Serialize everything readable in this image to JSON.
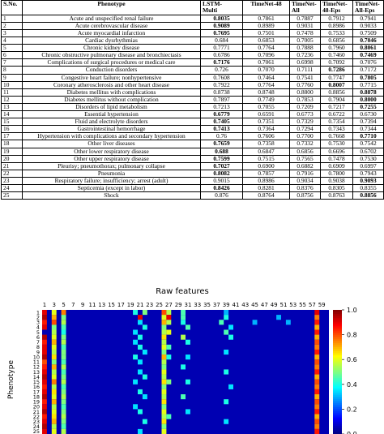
{
  "table": {
    "headers": [
      "S.No.",
      "Phenotype",
      "LSTM-\nMulti",
      "TimeNet-48",
      "TimeNet-\nAll",
      "TimeNet-\n48-Eps",
      "TimeNet-\nAll-Eps"
    ],
    "rows": [
      [
        "1",
        "Acute and unspecified renal failure",
        "0.8035",
        "0.7861",
        "0.7887",
        "0.7912",
        "0.7941"
      ],
      [
        "2",
        "Acute cerebrovascular disease",
        "0.9089",
        "0.8989",
        "0.9031",
        "0.8986",
        "0.9033"
      ],
      [
        "3",
        "Acute myocardial infarction",
        "0.7695",
        "0.7501",
        "0.7478",
        "0.7533",
        "0.7509"
      ],
      [
        "4",
        "Cardiac dysrhythmias",
        "0.684",
        "0.6853",
        "0.7005",
        "0.6856",
        "0.7046"
      ],
      [
        "5",
        "Chronic kidney disease",
        "0.7771",
        "0.7764",
        "0.7888",
        "0.7960",
        "0.8061"
      ],
      [
        "6",
        "Chronic obstructive pulmonary disease and bronchiectasis",
        "0.6786",
        "0.7096",
        "0.7236",
        "0.7460",
        "0.7469"
      ],
      [
        "7",
        "Complications of surgical procedures or medical care",
        "0.7176",
        "0.7061",
        "0.6998",
        "0.7092",
        "0.7076"
      ],
      [
        "8",
        "Conduction disorders",
        "0.726",
        "0.7070",
        "0.7111",
        "0.7286",
        "0.7172"
      ],
      [
        "9",
        "Congestive heart failure; nonhypertensive",
        "0.7608",
        "0.7464",
        "0.7541",
        "0.7747",
        "0.7805"
      ],
      [
        "10",
        "Coronary atherosclerosis and other heart disease",
        "0.7922",
        "0.7764",
        "0.7760",
        "0.8007",
        "0.7715"
      ],
      [
        "11",
        "Diabetes mellitus with complications",
        "0.8738",
        "0.8748",
        "0.8800",
        "0.8856",
        "0.8878"
      ],
      [
        "12",
        "Diabetes mellitus without complication",
        "0.7897",
        "0.7749",
        "0.7853",
        "0.7904",
        "0.8000"
      ],
      [
        "13",
        "Disorders of lipid metabolism",
        "0.7213",
        "0.7055",
        "0.7209",
        "0.7217",
        "0.7255"
      ],
      [
        "14",
        "Essential hypertension",
        "0.6779",
        "0.6591",
        "0.6773",
        "0.6722",
        "0.6730"
      ],
      [
        "15",
        "Fluid and electrolyte disorders",
        "0.7405",
        "0.7351",
        "0.7329",
        "0.7354",
        "0.7394"
      ],
      [
        "16",
        "Gastrointestinal hemorrhage",
        "0.7413",
        "0.7364",
        "0.7294",
        "0.7343",
        "0.7344"
      ],
      [
        "17",
        "Hypertension with complications and secondary hypertension",
        "0.76",
        "0.7606",
        "0.7700",
        "0.7668",
        "0.7710"
      ],
      [
        "18",
        "Other liver diseases",
        "0.7659",
        "0.7358",
        "0.7332",
        "0.7530",
        "0.7542"
      ],
      [
        "19",
        "Other lower respiratory disease",
        "0.688",
        "0.6847",
        "0.6856",
        "0.6696",
        "0.6702"
      ],
      [
        "20",
        "Other upper respiratory disease",
        "0.7599",
        "0.7515",
        "0.7565",
        "0.7478",
        "0.7530"
      ],
      [
        "21",
        "Pleurisy; pneumothorax; pulmonary collapse",
        "0.7027",
        "0.6900",
        "0.6882",
        "0.6909",
        "0.6997"
      ],
      [
        "22",
        "Pneumonia",
        "0.8082",
        "0.7857",
        "0.7916",
        "0.7800",
        "0.7943"
      ],
      [
        "23",
        "Respiratory failure; insufficiency; arrest (adult)",
        "0.9015",
        "0.8986",
        "0.9034",
        "0.9038",
        "0.9093"
      ],
      [
        "24",
        "Septicemia (except in labor)",
        "0.8426",
        "0.8281",
        "0.8376",
        "0.8305",
        "0.8355"
      ],
      [
        "25",
        "Shock",
        "0.876",
        "0.8764",
        "0.8756",
        "0.8763",
        "0.8856"
      ]
    ],
    "bold_cells": [
      [
        1,
        2
      ],
      [
        2,
        2
      ],
      [
        3,
        2
      ],
      [
        4,
        6
      ],
      [
        5,
        6
      ],
      [
        6,
        6
      ],
      [
        7,
        2
      ],
      [
        8,
        5
      ],
      [
        9,
        6
      ],
      [
        10,
        5
      ],
      [
        11,
        6
      ],
      [
        12,
        6
      ],
      [
        13,
        6
      ],
      [
        14,
        2
      ],
      [
        15,
        2
      ],
      [
        16,
        2
      ],
      [
        17,
        6
      ],
      [
        18,
        2
      ],
      [
        19,
        2
      ],
      [
        20,
        2
      ],
      [
        21,
        2
      ],
      [
        22,
        2
      ],
      [
        23,
        6
      ],
      [
        24,
        2
      ],
      [
        25,
        6
      ]
    ]
  },
  "chart_data": {
    "type": "heatmap",
    "title": "Raw features",
    "xlabel": "",
    "ylabel": "Phenotype",
    "x_tick_labels": [
      "1",
      "3",
      "5",
      "7",
      "9",
      "11",
      "13",
      "15",
      "17",
      "19",
      "21",
      "23",
      "25",
      "27",
      "29",
      "31",
      "33",
      "35",
      "37",
      "39",
      "41",
      "43",
      "45",
      "47",
      "49",
      "51",
      "53",
      "55",
      "57",
      "59"
    ],
    "x_tick_values": [
      1,
      3,
      5,
      7,
      9,
      11,
      13,
      15,
      17,
      19,
      21,
      23,
      25,
      27,
      29,
      31,
      33,
      35,
      37,
      39,
      41,
      43,
      45,
      47,
      49,
      51,
      53,
      55,
      57,
      59
    ],
    "y_tick_labels": [
      "1",
      "2",
      "3",
      "4",
      "5",
      "6",
      "7",
      "8",
      "9",
      "10",
      "11",
      "12",
      "13",
      "14",
      "15",
      "16",
      "17",
      "18",
      "19",
      "20",
      "21",
      "22",
      "23",
      "24",
      "25"
    ],
    "n_rows": 25,
    "n_cols": 60,
    "colorbar": {
      "min": 0.0,
      "max": 1.0,
      "ticks": [
        "0.0",
        "0.2",
        "0.4",
        "0.6",
        "0.8",
        "1.0"
      ]
    },
    "colormap": [
      "#00007f",
      "#0000ff",
      "#007fff",
      "#00ffff",
      "#7fff7f",
      "#ffff00",
      "#ff7f00",
      "#ff0000",
      "#7f0000"
    ],
    "background_value": 0.05,
    "high_cells": [
      [
        1,
        1,
        0.9
      ],
      [
        1,
        3,
        0.6
      ],
      [
        1,
        5,
        0.75
      ],
      [
        1,
        20,
        0.4
      ],
      [
        1,
        22,
        0.5
      ],
      [
        1,
        26,
        0.8
      ],
      [
        1,
        27,
        0.55
      ],
      [
        1,
        30,
        0.45
      ],
      [
        1,
        39,
        0.3
      ],
      [
        1,
        58,
        0.9
      ],
      [
        2,
        1,
        0.95
      ],
      [
        2,
        3,
        0.7
      ],
      [
        2,
        5,
        0.5
      ],
      [
        2,
        21,
        0.9
      ],
      [
        2,
        26,
        0.6
      ],
      [
        2,
        27,
        0.9
      ],
      [
        2,
        30,
        0.45
      ],
      [
        2,
        39,
        0.4
      ],
      [
        2,
        50,
        0.3
      ],
      [
        2,
        58,
        0.75
      ],
      [
        3,
        1,
        0.85
      ],
      [
        3,
        3,
        0.8
      ],
      [
        3,
        5,
        0.55
      ],
      [
        3,
        21,
        0.35
      ],
      [
        3,
        26,
        0.7
      ],
      [
        3,
        27,
        0.55
      ],
      [
        3,
        30,
        0.4
      ],
      [
        3,
        38,
        0.45
      ],
      [
        3,
        45,
        0.3
      ],
      [
        3,
        52,
        0.3
      ],
      [
        3,
        58,
        0.85
      ],
      [
        4,
        1,
        0.9
      ],
      [
        4,
        3,
        0.5
      ],
      [
        4,
        5,
        0.45
      ],
      [
        4,
        22,
        0.4
      ],
      [
        4,
        26,
        0.5
      ],
      [
        4,
        31,
        0.45
      ],
      [
        4,
        40,
        0.35
      ],
      [
        4,
        58,
        0.7
      ],
      [
        5,
        3,
        0.55
      ],
      [
        5,
        5,
        0.4
      ],
      [
        5,
        20,
        0.35
      ],
      [
        5,
        26,
        0.55
      ],
      [
        5,
        27,
        0.6
      ],
      [
        5,
        39,
        0.45
      ],
      [
        5,
        58,
        0.85
      ],
      [
        6,
        1,
        0.95
      ],
      [
        6,
        3,
        0.6
      ],
      [
        6,
        5,
        0.5
      ],
      [
        6,
        21,
        0.4
      ],
      [
        6,
        26,
        0.65
      ],
      [
        6,
        30,
        0.55
      ],
      [
        6,
        40,
        0.4
      ],
      [
        6,
        58,
        0.7
      ],
      [
        7,
        1,
        0.85
      ],
      [
        7,
        3,
        0.7
      ],
      [
        7,
        5,
        0.55
      ],
      [
        7,
        20,
        0.35
      ],
      [
        7,
        26,
        0.55
      ],
      [
        7,
        31,
        0.4
      ],
      [
        7,
        58,
        0.8
      ],
      [
        8,
        1,
        0.9
      ],
      [
        8,
        3,
        0.6
      ],
      [
        8,
        5,
        0.45
      ],
      [
        8,
        21,
        0.4
      ],
      [
        8,
        26,
        0.6
      ],
      [
        8,
        27,
        0.45
      ],
      [
        8,
        58,
        0.75
      ],
      [
        9,
        1,
        0.9
      ],
      [
        9,
        3,
        0.55
      ],
      [
        9,
        5,
        0.5
      ],
      [
        9,
        22,
        0.35
      ],
      [
        9,
        26,
        0.5
      ],
      [
        9,
        39,
        0.35
      ],
      [
        9,
        58,
        0.85
      ],
      [
        10,
        1,
        0.95
      ],
      [
        10,
        3,
        0.65
      ],
      [
        10,
        5,
        0.5
      ],
      [
        10,
        20,
        0.4
      ],
      [
        10,
        26,
        0.7
      ],
      [
        10,
        27,
        0.4
      ],
      [
        10,
        31,
        0.35
      ],
      [
        10,
        58,
        0.7
      ],
      [
        11,
        1,
        0.8
      ],
      [
        11,
        3,
        0.5
      ],
      [
        11,
        5,
        0.45
      ],
      [
        11,
        21,
        0.35
      ],
      [
        11,
        26,
        0.55
      ],
      [
        11,
        58,
        0.8
      ],
      [
        12,
        1,
        0.85
      ],
      [
        12,
        3,
        0.7
      ],
      [
        12,
        5,
        0.55
      ],
      [
        12,
        26,
        0.5
      ],
      [
        12,
        30,
        0.4
      ],
      [
        12,
        58,
        0.75
      ],
      [
        13,
        1,
        0.9
      ],
      [
        13,
        3,
        0.55
      ],
      [
        13,
        5,
        0.45
      ],
      [
        13,
        21,
        0.35
      ],
      [
        13,
        26,
        0.6
      ],
      [
        13,
        39,
        0.4
      ],
      [
        13,
        58,
        0.85
      ],
      [
        14,
        1,
        0.95
      ],
      [
        14,
        3,
        0.6
      ],
      [
        14,
        5,
        0.5
      ],
      [
        14,
        22,
        0.4
      ],
      [
        14,
        26,
        0.55
      ],
      [
        14,
        58,
        0.7
      ],
      [
        15,
        1,
        0.9
      ],
      [
        15,
        3,
        0.75
      ],
      [
        15,
        5,
        0.55
      ],
      [
        15,
        20,
        0.35
      ],
      [
        15,
        26,
        0.65
      ],
      [
        15,
        27,
        0.5
      ],
      [
        15,
        31,
        0.4
      ],
      [
        15,
        58,
        0.8
      ],
      [
        16,
        1,
        0.85
      ],
      [
        16,
        3,
        0.55
      ],
      [
        16,
        5,
        0.45
      ],
      [
        16,
        26,
        0.5
      ],
      [
        16,
        40,
        0.35
      ],
      [
        16,
        58,
        0.75
      ],
      [
        17,
        1,
        0.9
      ],
      [
        17,
        3,
        0.65
      ],
      [
        17,
        5,
        0.5
      ],
      [
        17,
        21,
        0.4
      ],
      [
        17,
        26,
        0.6
      ],
      [
        17,
        58,
        0.85
      ],
      [
        18,
        1,
        0.95
      ],
      [
        18,
        3,
        0.6
      ],
      [
        18,
        5,
        0.55
      ],
      [
        18,
        22,
        0.35
      ],
      [
        18,
        26,
        0.55
      ],
      [
        18,
        30,
        0.45
      ],
      [
        18,
        58,
        0.7
      ],
      [
        19,
        1,
        0.85
      ],
      [
        19,
        3,
        0.7
      ],
      [
        19,
        5,
        0.5
      ],
      [
        19,
        26,
        0.65
      ],
      [
        19,
        39,
        0.4
      ],
      [
        19,
        58,
        0.8
      ],
      [
        20,
        1,
        0.9
      ],
      [
        20,
        3,
        0.55
      ],
      [
        20,
        5,
        0.45
      ],
      [
        20,
        20,
        0.35
      ],
      [
        20,
        26,
        0.5
      ],
      [
        20,
        58,
        0.75
      ],
      [
        21,
        1,
        0.95
      ],
      [
        21,
        3,
        0.6
      ],
      [
        21,
        5,
        0.5
      ],
      [
        21,
        21,
        0.4
      ],
      [
        21,
        26,
        0.6
      ],
      [
        21,
        31,
        0.35
      ],
      [
        21,
        58,
        0.85
      ],
      [
        22,
        1,
        0.85
      ],
      [
        22,
        3,
        0.65
      ],
      [
        22,
        5,
        0.55
      ],
      [
        22,
        26,
        0.55
      ],
      [
        22,
        27,
        0.45
      ],
      [
        22,
        58,
        0.7
      ],
      [
        23,
        1,
        0.9
      ],
      [
        23,
        3,
        0.7
      ],
      [
        23,
        5,
        0.5
      ],
      [
        23,
        22,
        0.4
      ],
      [
        23,
        26,
        0.65
      ],
      [
        23,
        39,
        0.35
      ],
      [
        23,
        58,
        0.8
      ],
      [
        24,
        1,
        0.95
      ],
      [
        24,
        3,
        0.55
      ],
      [
        24,
        5,
        0.45
      ],
      [
        24,
        26,
        0.5
      ],
      [
        24,
        58,
        0.75
      ],
      [
        25,
        1,
        0.9
      ],
      [
        25,
        3,
        0.6
      ],
      [
        25,
        5,
        0.55
      ],
      [
        25,
        21,
        0.35
      ],
      [
        25,
        26,
        0.6
      ],
      [
        25,
        58,
        0.85
      ]
    ]
  }
}
